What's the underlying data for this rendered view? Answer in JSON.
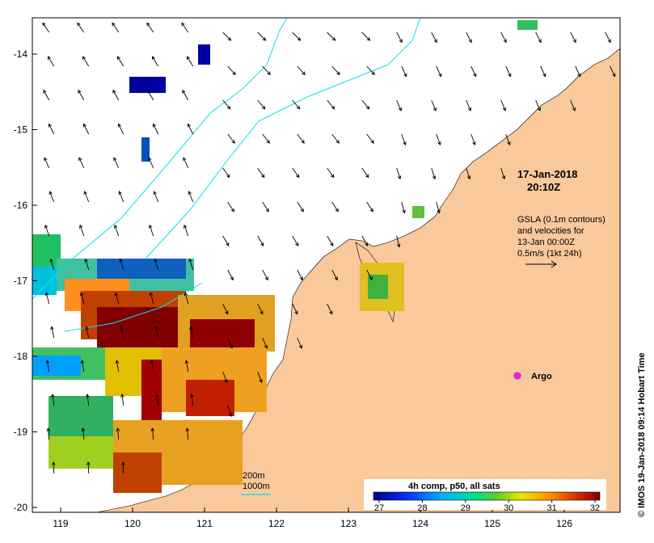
{
  "map": {
    "lon_ticks": [
      "119",
      "120",
      "121",
      "122",
      "123",
      "124",
      "125",
      "126"
    ],
    "lat_ticks": [
      "-14",
      "-15",
      "-16",
      "-17",
      "-18",
      "-19",
      "-20"
    ],
    "land_color": "#f9c89b",
    "ocean_color": "#ffffff",
    "contour_color": "#00e5ee",
    "arrow_color": "#000000"
  },
  "header": {
    "date": "17-Jan-2018",
    "time": "20:10Z"
  },
  "legend": {
    "line1": "GSLA (0.1m contours)",
    "line2": "and velocities for",
    "line3": "13-Jan 00:00Z",
    "line4": "0.5m/s (1kt 24h)"
  },
  "argo": {
    "label": "Argo",
    "marker_color": "#e000e0"
  },
  "bathymetry": {
    "label_200": "200m",
    "label_1000": "1000m"
  },
  "colorbar": {
    "title": "4h comp, p50, all sats",
    "ticks": [
      "27",
      "28",
      "29",
      "30",
      "31",
      "32"
    ],
    "colors": [
      "#00007f",
      "#0040ff",
      "#00c0ff",
      "#00e080",
      "#60d020",
      "#e8e800",
      "#ff9000",
      "#e04000",
      "#800000"
    ]
  },
  "credit": {
    "text": "© IMOS 19-Jan-2018 09:14 Hobart Time"
  }
}
